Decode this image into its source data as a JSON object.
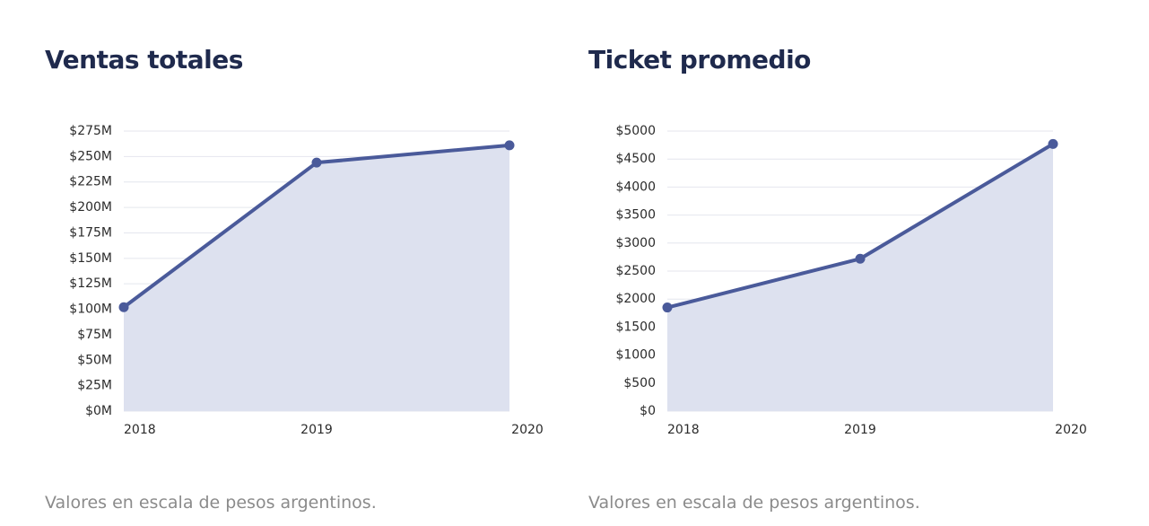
{
  "chart_data": [
    {
      "type": "area",
      "title": "Ventas totales",
      "xlabel": "",
      "ylabel": "",
      "categories": [
        "2018",
        "2019",
        "2020"
      ],
      "series": [
        {
          "name": "Ventas totales",
          "values": [
            102,
            244,
            261
          ]
        }
      ],
      "ylim": [
        0,
        275
      ],
      "yticks": [
        0,
        25,
        50,
        75,
        100,
        125,
        150,
        175,
        200,
        225,
        250,
        275
      ],
      "ytick_labels": [
        "$0M",
        "$25M",
        "$50M",
        "$75M",
        "$100M",
        "$125M",
        "$150M",
        "$175M",
        "$200M",
        "$225M",
        "$250M",
        "$275M"
      ],
      "grid": true,
      "legend": "none",
      "footnote": "Valores en escala de pesos argentinos."
    },
    {
      "type": "area",
      "title": "Ticket promedio",
      "xlabel": "",
      "ylabel": "",
      "categories": [
        "2018",
        "2019",
        "2020"
      ],
      "series": [
        {
          "name": "Ticket promedio",
          "values": [
            1850,
            2720,
            4770
          ]
        }
      ],
      "ylim": [
        0,
        5000
      ],
      "yticks": [
        0,
        500,
        1000,
        1500,
        2000,
        2500,
        3000,
        3500,
        4000,
        4500,
        5000
      ],
      "ytick_labels": [
        "$0",
        "$500",
        "$1000",
        "$1500",
        "$2000",
        "$2500",
        "$3000",
        "$3500",
        "$4000",
        "$4500",
        "$5000"
      ],
      "grid": true,
      "legend": "none",
      "footnote": "Valores en escala de pesos argentinos."
    }
  ],
  "colors": {
    "line": "#4a5a9a",
    "fill": "#dde1ef",
    "grid": "#e4e6ee",
    "axis_text": "#2b2b2b",
    "title": "#1f2a4d",
    "footnote": "#8b8b8b"
  }
}
